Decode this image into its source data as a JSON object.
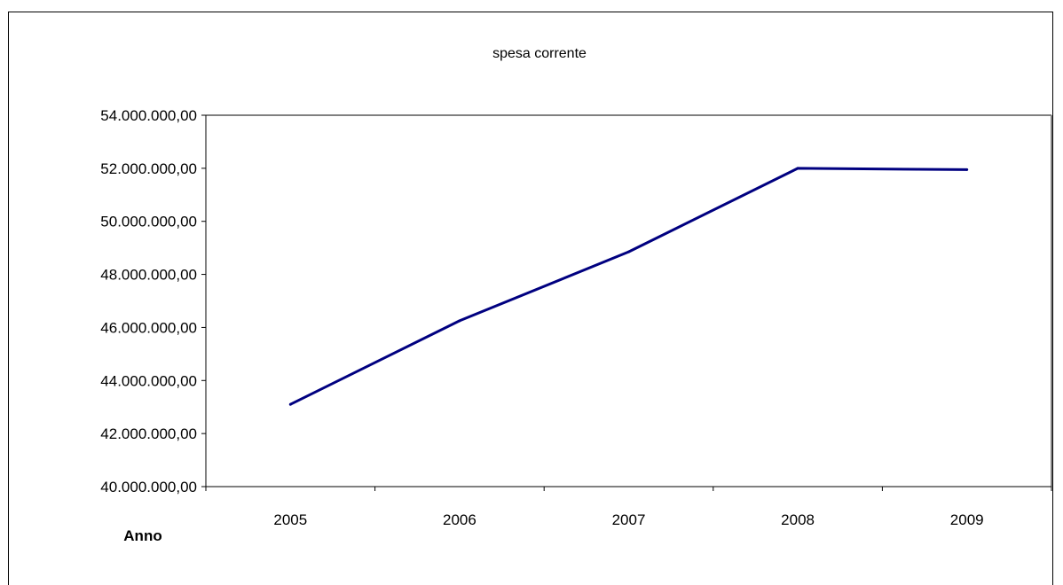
{
  "chart_data": {
    "type": "line",
    "title": "spesa corrente",
    "xlabel": "Anno",
    "ylabel": "",
    "categories": [
      "2005",
      "2006",
      "2007",
      "2008",
      "2009"
    ],
    "series": [
      {
        "values": [
          43100000,
          46250000,
          48850000,
          52000000,
          51950000
        ],
        "color": "#000080"
      }
    ],
    "ylim": [
      40000000,
      54000000
    ],
    "y_ticks": [
      40000000,
      42000000,
      44000000,
      46000000,
      48000000,
      50000000,
      52000000,
      54000000
    ],
    "y_tick_labels": [
      "40.000.000,00",
      "42.000.000,00",
      "44.000.000,00",
      "46.000.000,00",
      "48.000.000,00",
      "50.000.000,00",
      "52.000.000,00",
      "54.000.000,00"
    ],
    "grid": false,
    "legend": "none",
    "plot_border_color": "#808080"
  }
}
